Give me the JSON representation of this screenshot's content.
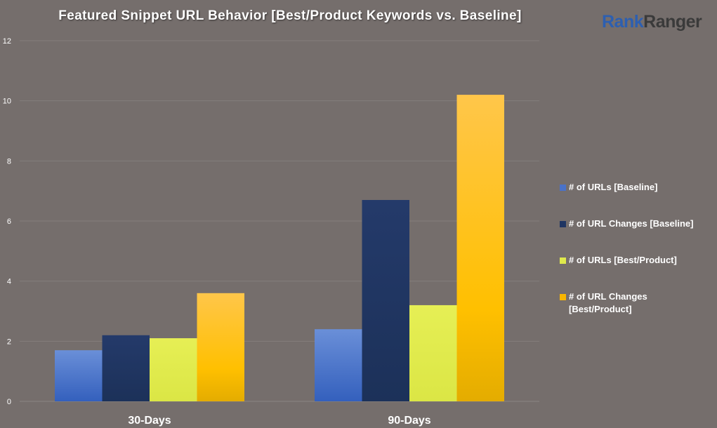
{
  "header": {
    "title": "Featured Snippet URL Behavior [Best/Product Keywords vs. Baseline]",
    "logo_rank": "Rank",
    "logo_ranger": "Ranger"
  },
  "chart_data": {
    "type": "bar",
    "title": "Featured Snippet URL Behavior [Best/Product Keywords vs. Baseline]",
    "categories": [
      "30-Days",
      "90-Days"
    ],
    "series": [
      {
        "name": "# of URLs [Baseline]",
        "values": [
          1.7,
          2.4
        ],
        "color": "#4a72c8"
      },
      {
        "name": "# of URL Changes [Baseline]",
        "values": [
          2.2,
          6.7
        ],
        "color": "#1f3562"
      },
      {
        "name": "# of URLs [Best/Product]",
        "values": [
          2.1,
          3.2
        ],
        "color": "#dfe94c"
      },
      {
        "name": "# of URL Changes [Best/Product]",
        "values": [
          3.6,
          10.2
        ],
        "color": "#f7b500"
      }
    ],
    "ylim": [
      0,
      12
    ],
    "yticks": [
      0,
      2,
      4,
      6,
      8,
      10,
      12
    ],
    "grid": true,
    "legend_position": "right"
  }
}
